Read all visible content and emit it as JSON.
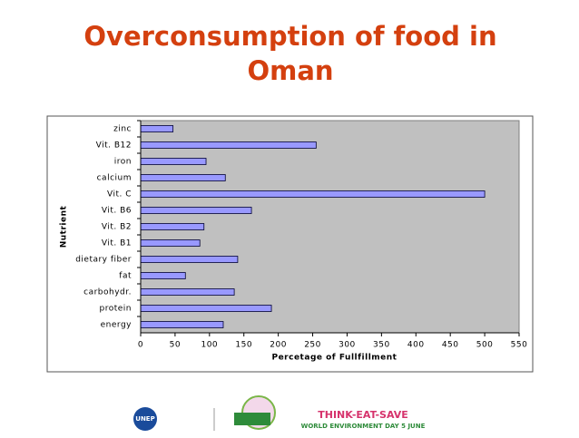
{
  "chart_data": {
    "type": "bar",
    "orientation": "horizontal",
    "title": "Overconsumption of food in Oman",
    "title_lines": [
      "Overconsumption of food in",
      "Oman"
    ],
    "categories": [
      "zinc",
      "Vit. B12",
      "iron",
      "calcium",
      "Vit. C",
      "Vit. B6",
      "Vit. B2",
      "Vit. B1",
      "dietary fiber",
      "fat",
      "carbohydr.",
      "protein",
      "energy"
    ],
    "values": [
      47,
      255,
      95,
      123,
      500,
      161,
      92,
      86,
      141,
      65,
      136,
      190,
      120
    ],
    "color": "#9999ff",
    "xlabel": "Percetage of Fullfillment",
    "ylabel": "Nutrient",
    "xlim": [
      0,
      550
    ],
    "xticks": [
      0,
      50,
      100,
      150,
      200,
      250,
      300,
      350,
      400,
      450,
      500,
      550
    ],
    "grid": false,
    "plot_background": "#c0c0c0"
  },
  "logos": {
    "unep": "UNEP",
    "campaign": "THINK-EAT-SAVE",
    "tagline": "WORLD ENVIRONMENT DAY 5 JUNE"
  }
}
